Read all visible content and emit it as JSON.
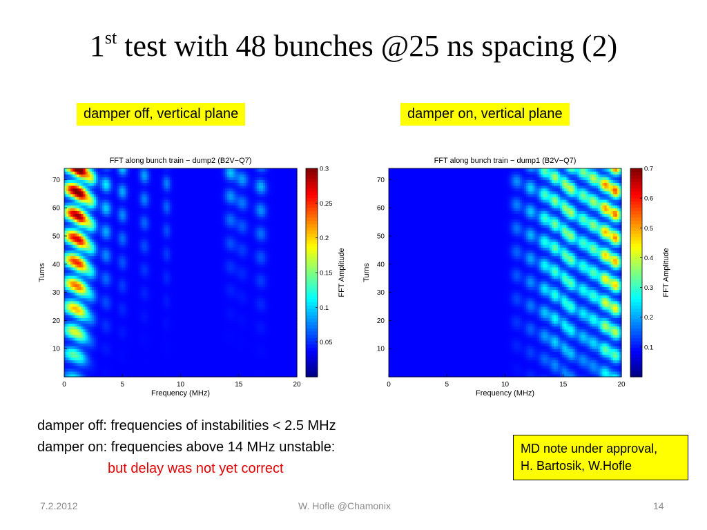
{
  "slide": {
    "title_main": "1",
    "title_sup": "st",
    "title_rest": " test with 48 bunches @25 ns spacing (2)",
    "label_left": "damper off, vertical plane",
    "label_right": "damper on, vertical plane",
    "line1": "damper off: frequencies of instabilities < 2.5 MHz",
    "line2": "damper on: frequencies above 14 MHz unstable:",
    "line3": "but delay was not yet correct",
    "note_line1": "MD note under approval,",
    "note_line2": "H. Bartosik, W.Hofle",
    "footer_date": "7.2.2012",
    "footer_center": "W. Hofle    @Chamonix",
    "footer_page": "14",
    "highlight_color": "#ffff00",
    "emphasis_color": "#e00000"
  },
  "chart_data": [
    {
      "type": "heatmap",
      "title": "FFT along bunch train  − dump2 (B2V−Q7)",
      "xlabel": "Frequency (MHz)",
      "ylabel": "Turns",
      "colorbar_label": "FFT Amplitude",
      "xlim": [
        0,
        20
      ],
      "ylim": [
        0,
        74
      ],
      "x_ticks": [
        "0",
        "5",
        "10",
        "15",
        "20"
      ],
      "y_ticks": [
        "10",
        "20",
        "30",
        "40",
        "50",
        "60",
        "70"
      ],
      "clim": [
        0,
        0.3
      ],
      "colorbar_ticks": [
        "0.05",
        "0.1",
        "0.15",
        "0.2",
        "0.25",
        "0.3"
      ],
      "colormap": "jet",
      "sources": [
        {
          "freq": 0.7,
          "width": 0.8,
          "amp": 0.27,
          "grow": 0.4
        },
        {
          "freq": 1.5,
          "width": 0.6,
          "amp": 0.24,
          "grow": 0.6
        },
        {
          "freq": 2.3,
          "width": 0.5,
          "amp": 0.15,
          "grow": 1.0
        },
        {
          "freq": 3.6,
          "width": 0.45,
          "amp": 0.09,
          "grow": 1.2
        },
        {
          "freq": 5.0,
          "width": 0.4,
          "amp": 0.07,
          "grow": 1.5
        },
        {
          "freq": 6.9,
          "width": 0.4,
          "amp": 0.06,
          "grow": 1.8
        },
        {
          "freq": 8.8,
          "width": 0.35,
          "amp": 0.05,
          "grow": 1.8
        },
        {
          "freq": 14.3,
          "width": 0.5,
          "amp": 0.07,
          "grow": 2.2
        },
        {
          "freq": 15.3,
          "width": 0.5,
          "amp": 0.06,
          "grow": 2.2
        },
        {
          "freq": 16.9,
          "width": 0.5,
          "amp": 0.07,
          "grow": 1.6
        }
      ]
    },
    {
      "type": "heatmap",
      "title": "FFT along bunch train  − dump1 (B2V−Q7)",
      "xlabel": "Frequency (MHz)",
      "ylabel": "Turns",
      "colorbar_label": "FFT Amplitude",
      "xlim": [
        0,
        20
      ],
      "ylim": [
        0,
        74
      ],
      "x_ticks": [
        "0",
        "5",
        "10",
        "15",
        "20"
      ],
      "y_ticks": [
        "10",
        "20",
        "30",
        "40",
        "50",
        "60",
        "70"
      ],
      "clim": [
        0,
        0.7
      ],
      "colorbar_ticks": [
        "0.1",
        "0.2",
        "0.3",
        "0.4",
        "0.5",
        "0.6",
        "0.7"
      ],
      "colormap": "jet",
      "sources": [
        {
          "freq": 11.0,
          "width": 0.5,
          "amp": 0.12,
          "grow": 0.8
        },
        {
          "freq": 12.2,
          "width": 0.5,
          "amp": 0.18,
          "grow": 0.6
        },
        {
          "freq": 13.4,
          "width": 0.5,
          "amp": 0.28,
          "grow": 0.5
        },
        {
          "freq": 14.3,
          "width": 0.45,
          "amp": 0.34,
          "grow": 0.4
        },
        {
          "freq": 15.1,
          "width": 0.35,
          "amp": 0.3,
          "grow": 0.4
        },
        {
          "freq": 15.7,
          "width": 0.45,
          "amp": 0.36,
          "grow": 0.4
        },
        {
          "freq": 16.7,
          "width": 0.5,
          "amp": 0.3,
          "grow": 0.4
        },
        {
          "freq": 17.6,
          "width": 0.5,
          "amp": 0.35,
          "grow": 0.4
        },
        {
          "freq": 18.6,
          "width": 0.5,
          "amp": 0.5,
          "grow": 0.3
        },
        {
          "freq": 19.5,
          "width": 0.5,
          "amp": 0.55,
          "grow": 0.3
        }
      ]
    }
  ]
}
